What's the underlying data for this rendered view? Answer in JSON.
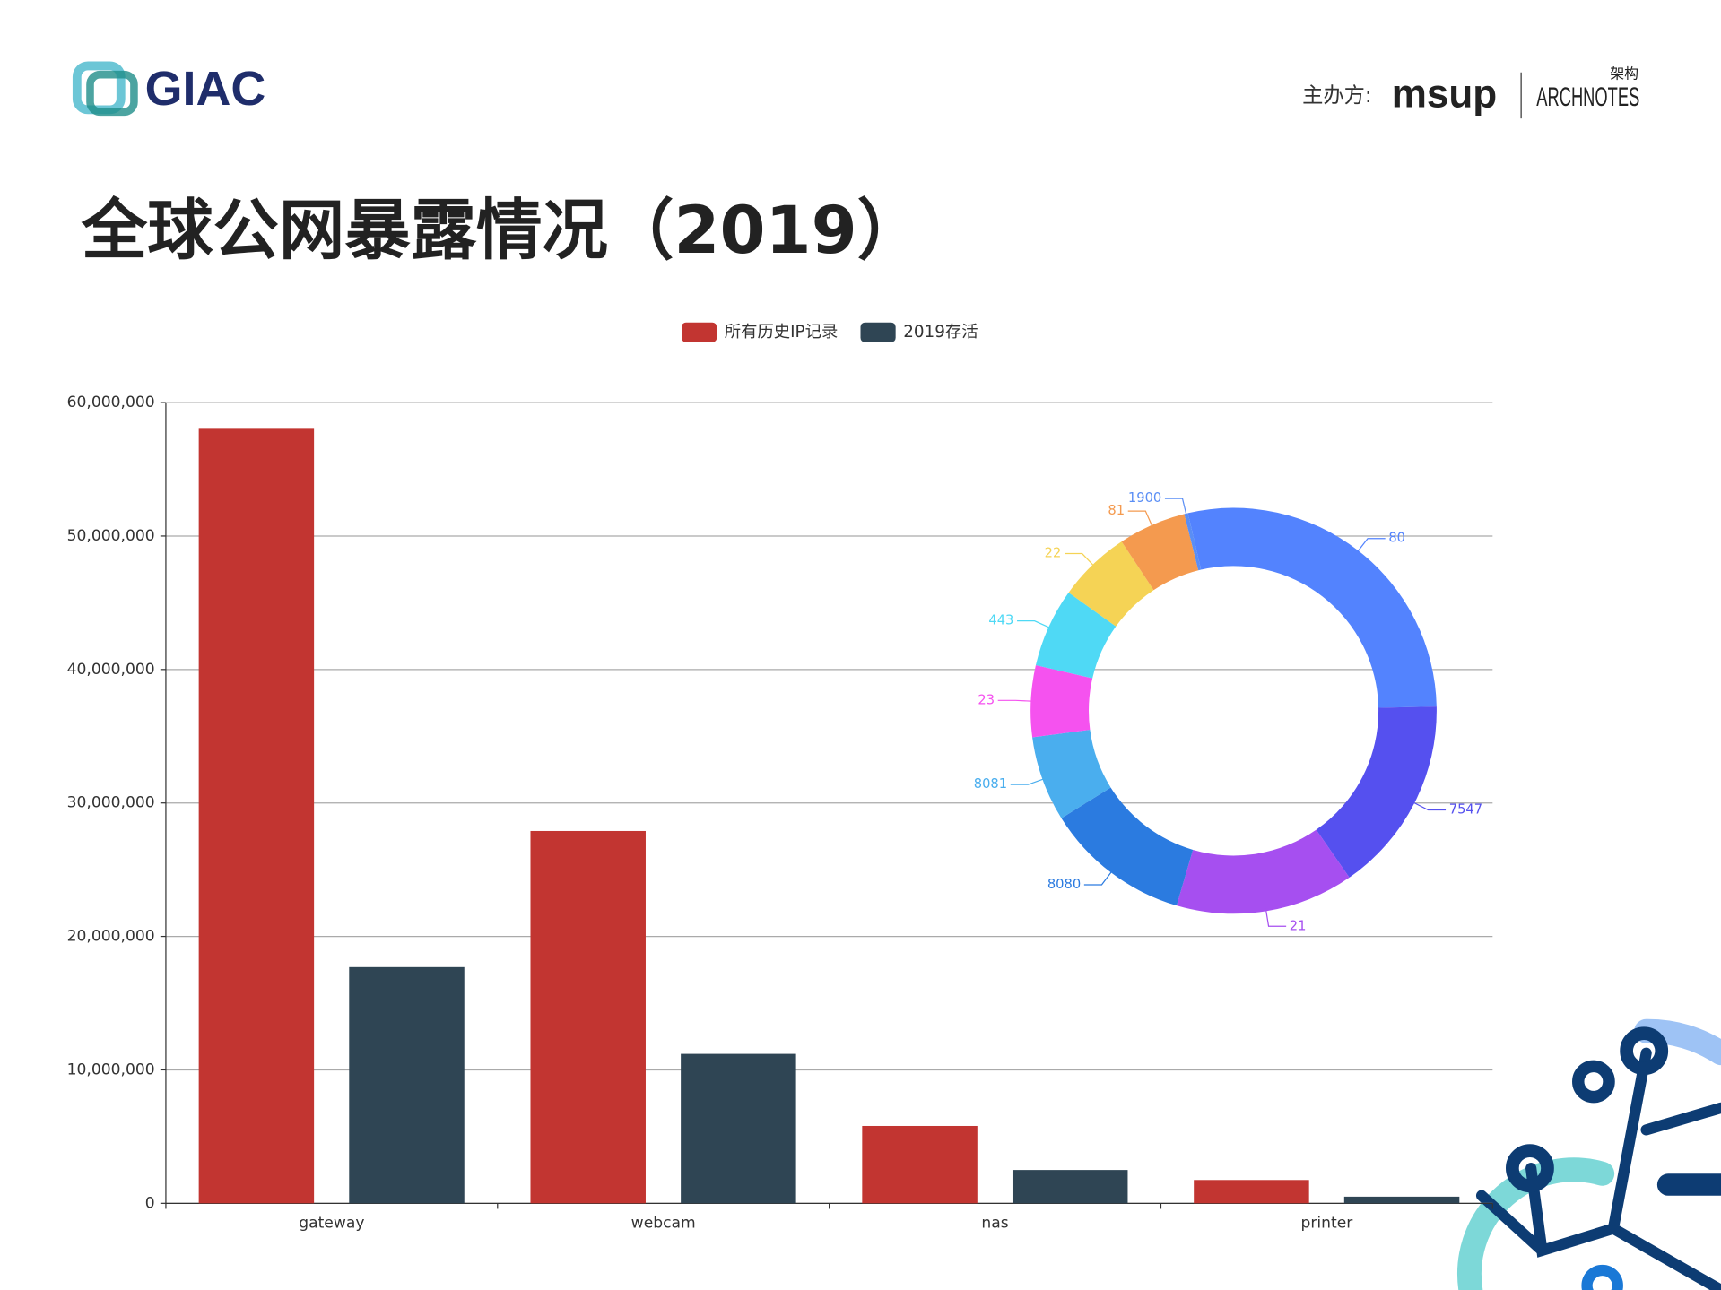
{
  "slide": {
    "logo": "GIAC",
    "organizer_label": "主办方:",
    "sponsor_1": "msup",
    "sponsor_2": "ARCHNOTES",
    "sponsor_2_cn": "架构",
    "title": "全球公网暴露情况（2019）"
  },
  "chart_data": [
    {
      "type": "bar",
      "categories": [
        "gateway",
        "webcam",
        "nas",
        "printer"
      ],
      "series": [
        {
          "name": "所有历史IP记录",
          "color": "#c23531",
          "values": [
            58100000,
            27900000,
            5800000,
            1750000
          ]
        },
        {
          "name": "2019存活",
          "color": "#2f4554",
          "values": [
            17700000,
            11200000,
            2500000,
            500000
          ]
        }
      ],
      "ylim": [
        0,
        60000000
      ],
      "yticks": [
        0,
        {
          "value": 10000000,
          "label": "10,000,000"
        },
        {
          "value": 20000000,
          "label": "20,000,000"
        },
        {
          "value": 30000000,
          "label": "30,000,000"
        },
        {
          "value": 40000000,
          "label": "40,000,000"
        },
        {
          "value": 50000000,
          "label": "50,000,000"
        },
        {
          "value": 60000000,
          "label": "60,000,000"
        }
      ],
      "grid": true,
      "legend": "top"
    },
    {
      "type": "pie",
      "categories": [
        "80",
        "7547",
        "21",
        "8080",
        "8081",
        "23",
        "443",
        "22",
        "81",
        "1900"
      ],
      "values": [
        28.3,
        15.7,
        14.2,
        11.6,
        6.8,
        5.7,
        6.3,
        5.8,
        5.4,
        0.3
      ],
      "colors": [
        "#5383fe",
        "#5550ef",
        "#a64ff0",
        "#2b7be0",
        "#4aaeee",
        "#f552ef",
        "#4fd9f5",
        "#f5d355",
        "#f49a4f",
        "#5a8ef5"
      ]
    }
  ]
}
